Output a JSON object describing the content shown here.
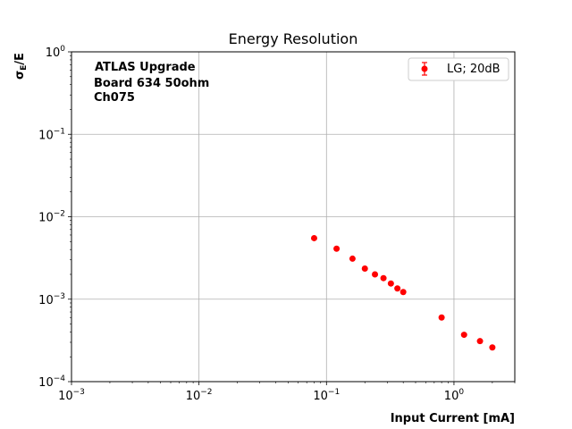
{
  "chart_data": {
    "type": "scatter",
    "title": "Energy Resolution",
    "xlabel": "Input Current [mA]",
    "ylabel_main": "σ",
    "ylabel_sub": "E",
    "ylabel_tail": "/E",
    "xscale": "log",
    "yscale": "log",
    "xlim": [
      0.001,
      3.0
    ],
    "ylim": [
      0.0001,
      1
    ],
    "grid": true,
    "legend_position": "top-right",
    "x_ticks": [
      {
        "value": 0.001,
        "base": "10",
        "exp": "−3"
      },
      {
        "value": 0.01,
        "base": "10",
        "exp": "−2"
      },
      {
        "value": 0.1,
        "base": "10",
        "exp": "−1"
      },
      {
        "value": 1,
        "base": "10",
        "exp": "0"
      }
    ],
    "y_ticks": [
      {
        "value": 0.0001,
        "base": "10",
        "exp": "−4"
      },
      {
        "value": 0.001,
        "base": "10",
        "exp": "−3"
      },
      {
        "value": 0.01,
        "base": "10",
        "exp": "−2"
      },
      {
        "value": 0.1,
        "base": "10",
        "exp": "−1"
      },
      {
        "value": 1,
        "base": "10",
        "exp": "0"
      }
    ],
    "annotation": [
      "ATLAS Upgrade",
      "Board 634 50ohm",
      "Ch075"
    ],
    "series": [
      {
        "name": "LG; 20dB",
        "color": "#ff0000",
        "x": [
          0.08,
          0.12,
          0.16,
          0.2,
          0.24,
          0.28,
          0.32,
          0.36,
          0.4,
          0.8,
          1.2,
          1.6,
          2.0
        ],
        "y": [
          0.0055,
          0.0041,
          0.0031,
          0.00235,
          0.002,
          0.0018,
          0.00155,
          0.00135,
          0.00122,
          0.0006,
          0.00037,
          0.00031,
          0.00026
        ]
      }
    ]
  }
}
